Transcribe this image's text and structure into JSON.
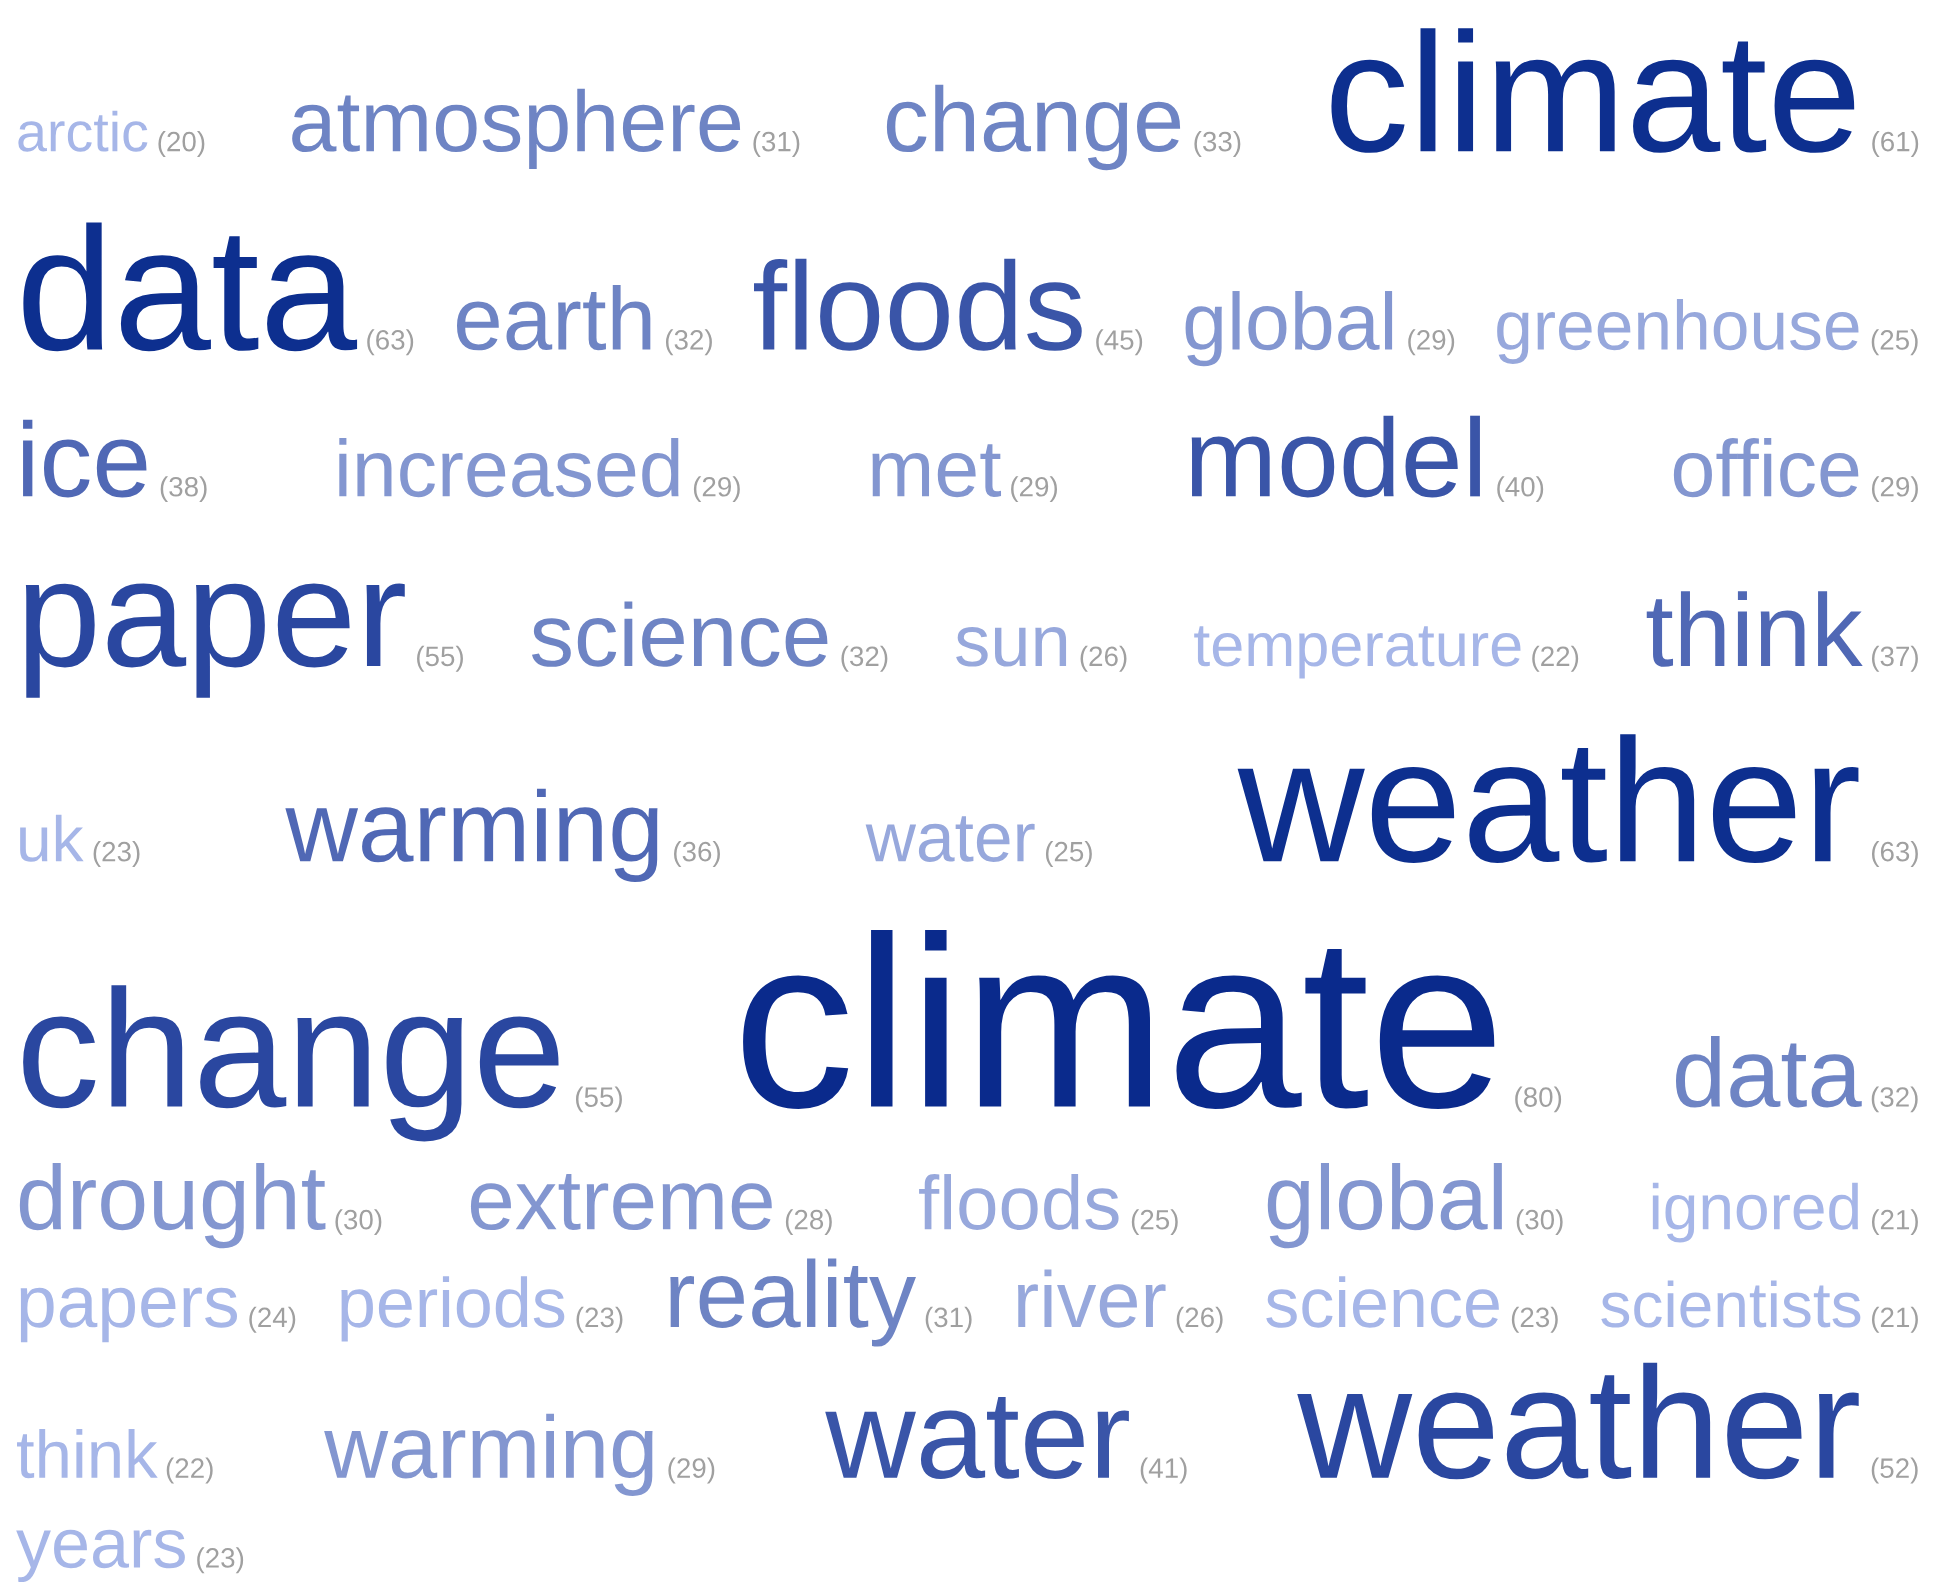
{
  "chart_data": [
    {
      "type": "other",
      "categories": [
        "arctic",
        "atmosphere",
        "change",
        "climate",
        "data",
        "earth",
        "floods",
        "global",
        "greenhouse",
        "ice",
        "increased",
        "met",
        "model",
        "office",
        "paper",
        "science",
        "sun",
        "temperature",
        "think",
        "uk",
        "warming",
        "water",
        "weather"
      ],
      "values": [
        20,
        31,
        33,
        61,
        63,
        32,
        45,
        29,
        25,
        38,
        29,
        29,
        40,
        29,
        55,
        32,
        26,
        22,
        37,
        23,
        36,
        25,
        63
      ],
      "value_labels": [
        "(20)",
        "(31)",
        "(33)",
        "(61)",
        "(63)",
        "(32)",
        "(45)",
        "(29)",
        "(25)",
        "(38)",
        "(29)",
        "(29)",
        "(40)",
        "(29)",
        "(55)",
        "(32)",
        "(26)",
        "(22)",
        "(37)",
        "(23)",
        "(36)",
        "(25)",
        "(63)"
      ],
      "colors": [
        "#a6b6e8",
        "#6e84c4",
        "#6e84c4",
        "#0d2f8f",
        "#0d2f8f",
        "#6e84c4",
        "#3a55a8",
        "#8396d0",
        "#97a8dc",
        "#5068b5",
        "#8396d0",
        "#8396d0",
        "#3a55a8",
        "#8396d0",
        "#2a47a0",
        "#6e84c4",
        "#97a8dc",
        "#a6b6e8",
        "#5068b5",
        "#a6b6e8",
        "#5068b5",
        "#97a8dc",
        "#0d2f8f"
      ]
    },
    {
      "type": "other",
      "categories": [
        "change",
        "climate",
        "data",
        "drought",
        "extreme",
        "floods",
        "global",
        "ignored",
        "papers",
        "periods",
        "reality",
        "river",
        "science",
        "scientists",
        "think",
        "warming",
        "water",
        "weather",
        "years"
      ],
      "values": [
        55,
        80,
        32,
        30,
        28,
        25,
        30,
        21,
        24,
        23,
        31,
        26,
        23,
        21,
        22,
        29,
        41,
        52,
        23
      ],
      "value_labels": [
        "(55)",
        "(80)",
        "(32)",
        "(30)",
        "(28)",
        "(25)",
        "(30)",
        "(21)",
        "(24)",
        "(23)",
        "(31)",
        "(26)",
        "(23)",
        "(21)",
        "(22)",
        "(29)",
        "(41)",
        "(52)",
        "(23)"
      ],
      "colors": [
        "#2a47a0",
        "#0a2a8c",
        "#6e84c4",
        "#8396d0",
        "#8396d0",
        "#97a8dc",
        "#8396d0",
        "#a6b6e8",
        "#a6b6e8",
        "#a6b6e8",
        "#6e84c4",
        "#97a8dc",
        "#a6b6e8",
        "#a6b6e8",
        "#a6b6e8",
        "#8396d0",
        "#3a55a8",
        "#2a47a0",
        "#a6b6e8"
      ]
    }
  ]
}
